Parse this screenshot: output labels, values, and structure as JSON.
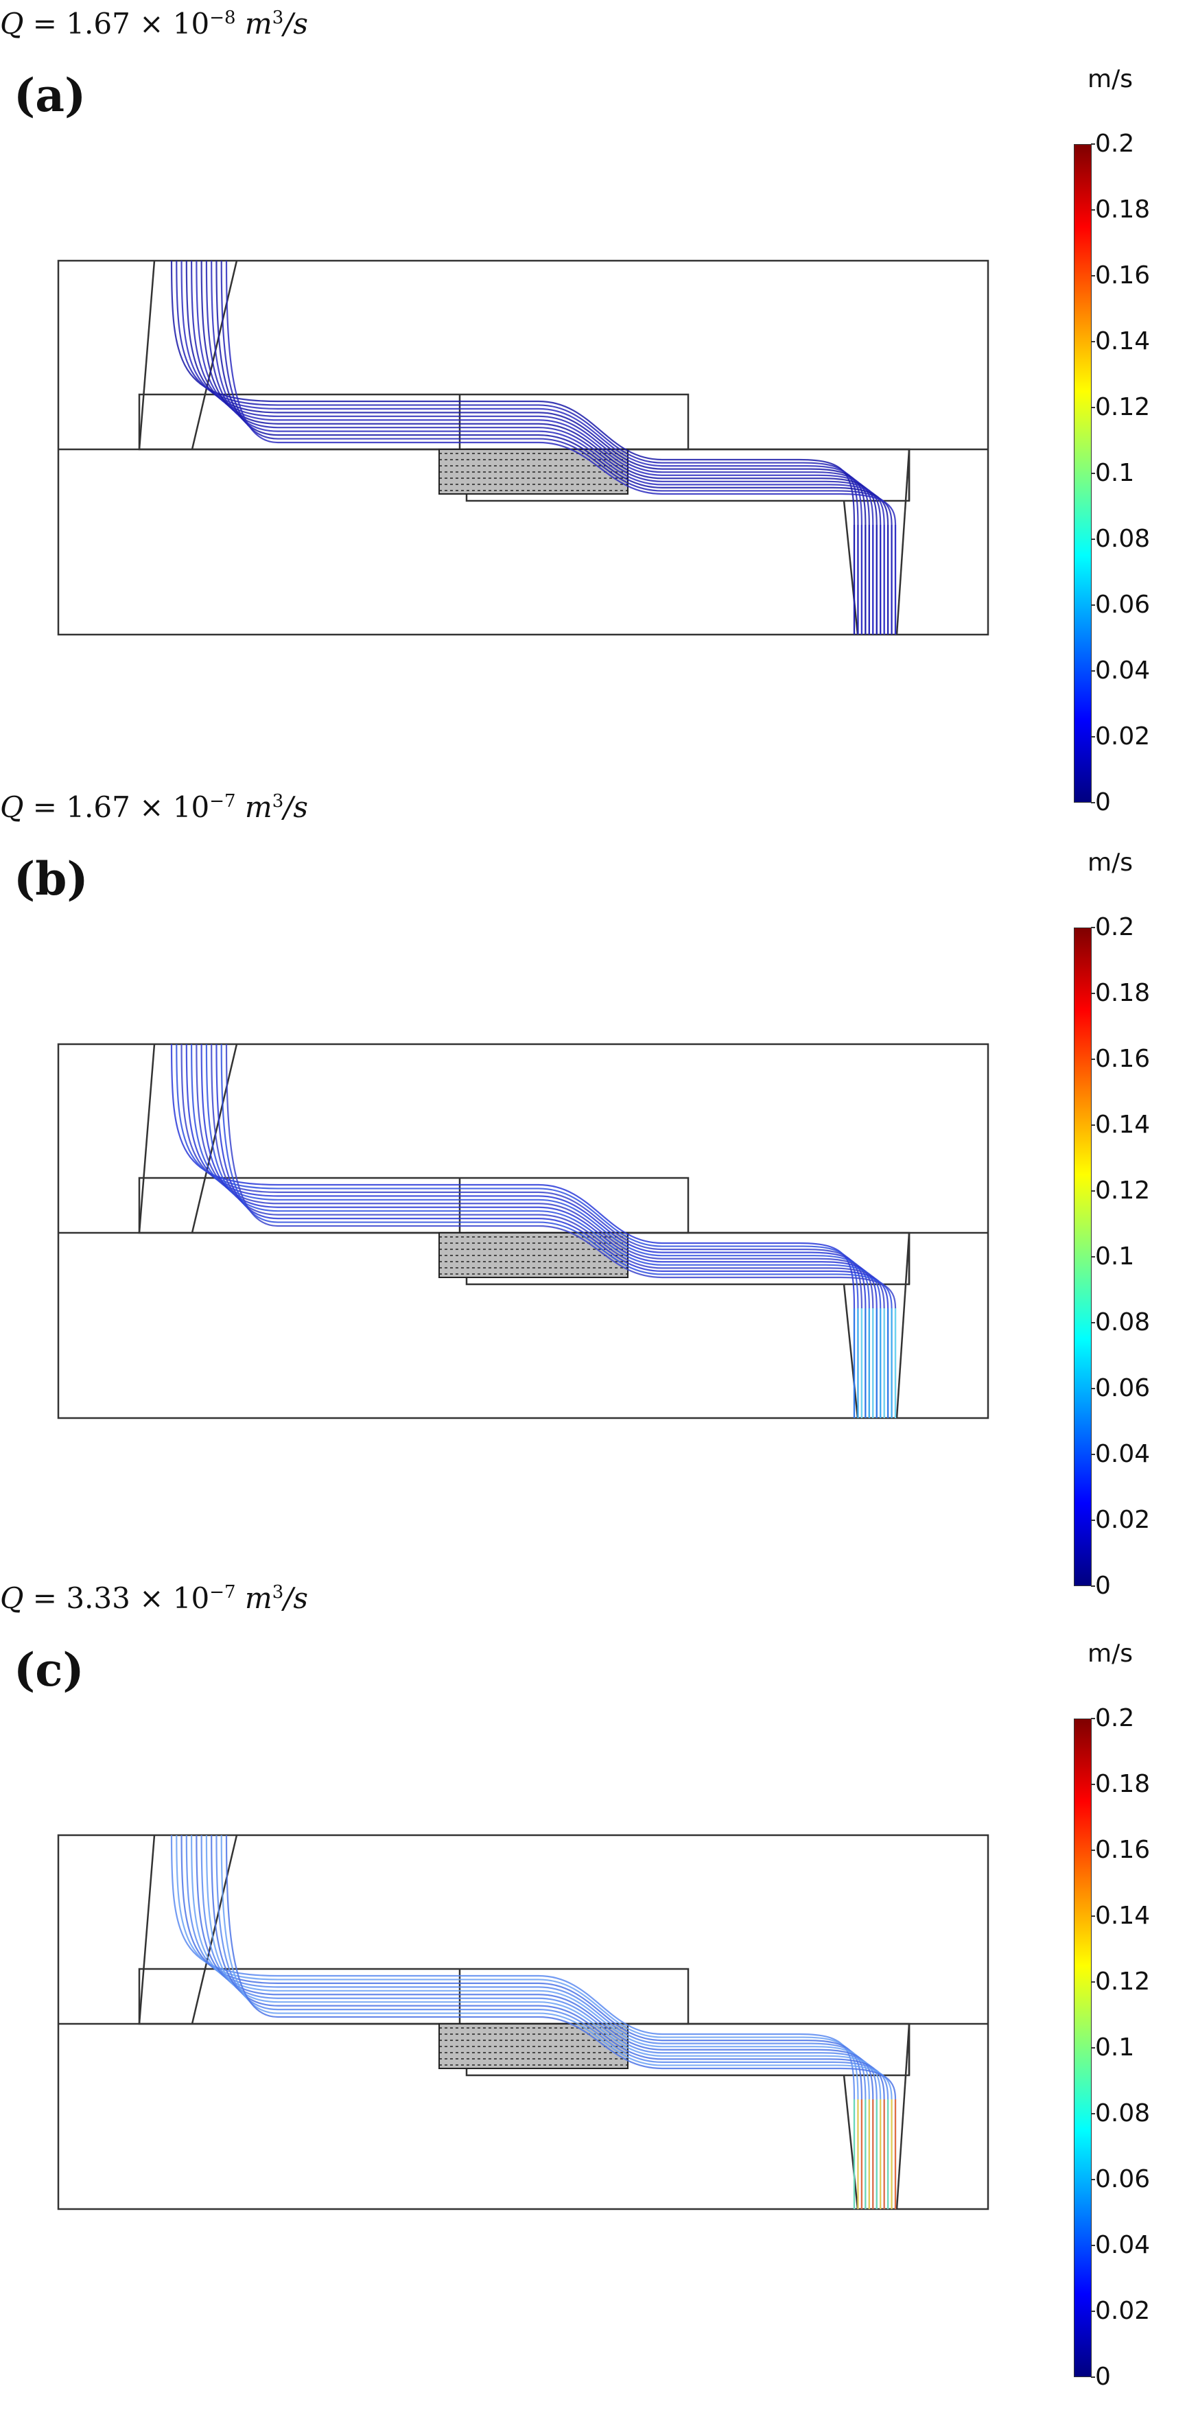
{
  "colorbar": {
    "unit": "m/s",
    "ticks": [
      "0.2",
      "0.18",
      "0.16",
      "0.14",
      "0.12",
      "0.1",
      "0.08",
      "0.06",
      "0.04",
      "0.02",
      "0"
    ],
    "colors": [
      "#00007f",
      "#0000ff",
      "#0080ff",
      "#00ffff",
      "#7fff7f",
      "#ffff00",
      "#ff8000",
      "#ff0000",
      "#7f0000"
    ]
  },
  "panels": [
    {
      "letter": "(a)",
      "flow_prefix": "Q = ",
      "flow_mantissa": "1.67 × 10",
      "flow_exponent": "−8",
      "flow_unit": "m",
      "flow_unit_exp": "3",
      "flow_unit_tail": "/s",
      "streamline_colors": [
        "#1a1aa8",
        "#2323b5",
        "#2b2bc0"
      ],
      "outlet_colors": [
        "#2020b0",
        "#2828bb",
        "#3030c8"
      ]
    },
    {
      "letter": "(b)",
      "flow_prefix": "Q = ",
      "flow_mantissa": "1.67 × 10",
      "flow_exponent": "−7",
      "flow_unit": "m",
      "flow_unit_exp": "3",
      "flow_unit_tail": "/s",
      "streamline_colors": [
        "#2a3ad8",
        "#3050e0",
        "#3a44cc"
      ],
      "outlet_colors": [
        "#2f7fe8",
        "#3fb6f0",
        "#6fe2f4"
      ]
    },
    {
      "letter": "(c)",
      "flow_prefix": "Q = ",
      "flow_mantissa": "3.33 × 10",
      "flow_exponent": "−7",
      "flow_unit": "m",
      "flow_unit_exp": "3",
      "flow_unit_tail": "/s",
      "streamline_colors": [
        "#5a8af0",
        "#6aa0f5",
        "#4c74e6"
      ],
      "outlet_colors": [
        "#68e0b0",
        "#f0d040",
        "#f06a30"
      ]
    }
  ]
}
